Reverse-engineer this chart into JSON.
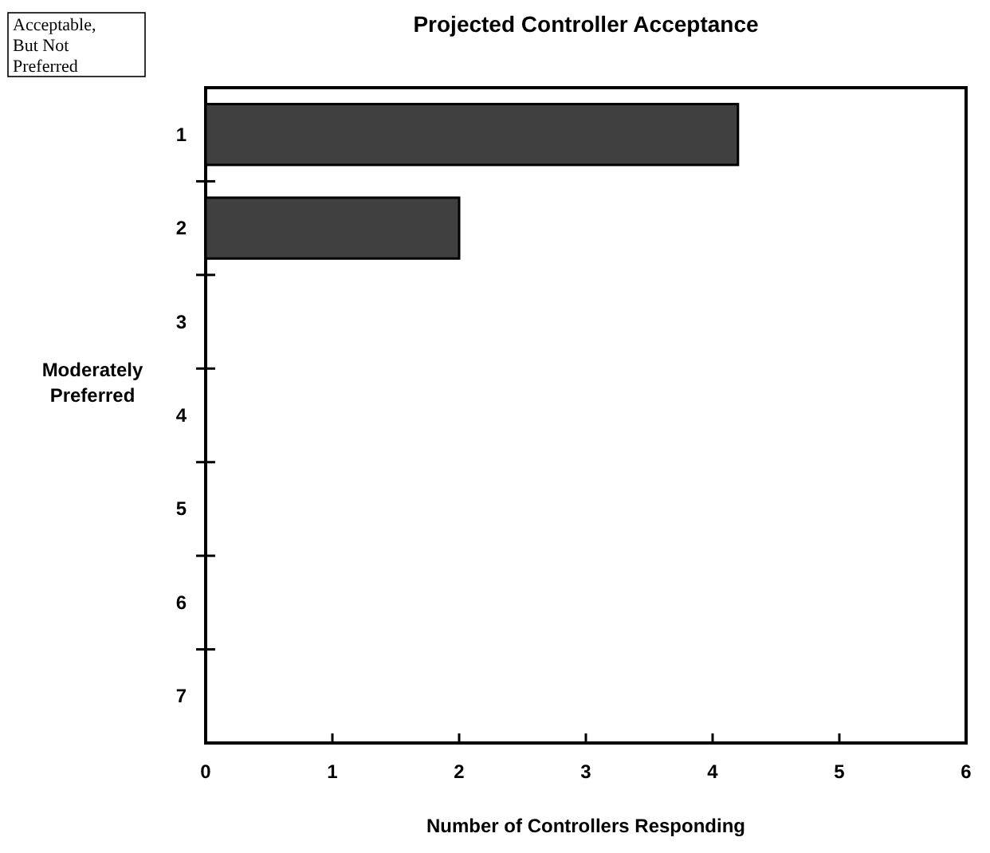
{
  "chart_data": {
    "type": "bar",
    "orientation": "horizontal",
    "title": "Projected Controller Acceptance",
    "xlabel": "Number of Controllers Responding",
    "categories": [
      "1",
      "2",
      "3",
      "4",
      "5",
      "6",
      "7"
    ],
    "values": [
      4.2,
      2,
      0,
      0,
      0,
      0,
      0
    ],
    "color": "#404040",
    "xlim": [
      0,
      6
    ],
    "xticks": [
      0,
      1,
      2,
      3,
      4,
      5,
      6
    ],
    "annotations": [
      "Acceptable, But Not Preferred",
      "Moderately Preferred"
    ]
  }
}
